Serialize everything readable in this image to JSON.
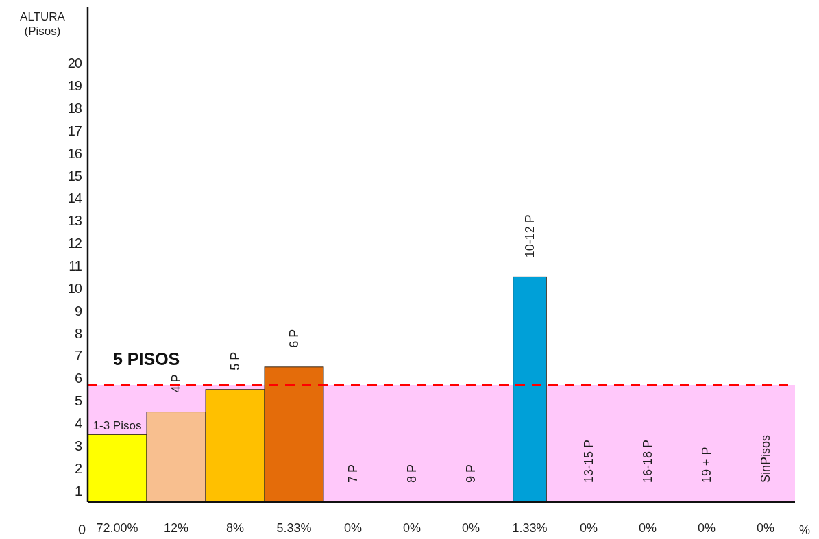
{
  "chart_data": {
    "type": "bar",
    "ylabel": "ALTURA (Pisos)",
    "xlabel": "%",
    "categories": [
      "72.00%",
      "12%",
      "8%",
      "5.33%",
      "0%",
      "0%",
      "0%",
      "1.33%",
      "0%",
      "0%",
      "0%",
      "0%"
    ],
    "values": [
      3,
      4,
      5,
      6,
      null,
      null,
      null,
      10,
      null,
      null,
      null,
      null
    ],
    "value_labels": [
      "1-3 Pisos",
      "4 P",
      "5 P",
      "6 P",
      "7 P",
      "8 P",
      "9 P",
      "10-12 P",
      "13-15 P",
      "16-18 P",
      "19 + P",
      "SinPisos"
    ],
    "colors": [
      "#ffff00",
      "#f8bf8f",
      "#ffc000",
      "#e46c0a",
      null,
      null,
      null,
      "#00a0d8",
      null,
      null,
      null,
      null
    ],
    "ylim": [
      0,
      22
    ],
    "yticks": [
      {
        "value": 0.5,
        "label": "1"
      },
      {
        "value": 1.5,
        "label": "2"
      },
      {
        "value": 2.5,
        "label": "3"
      },
      {
        "value": 3.5,
        "label": "4"
      },
      {
        "value": 4.5,
        "label": "5"
      },
      {
        "value": 5.5,
        "label": "6"
      },
      {
        "value": 6.5,
        "label": "7"
      },
      {
        "value": 7.5,
        "label": "8"
      },
      {
        "value": 8.5,
        "label": "9"
      },
      {
        "value": 9.5,
        "label": "10"
      },
      {
        "value": 10.5,
        "label": "11"
      },
      {
        "value": 11.5,
        "label": "12"
      },
      {
        "value": 12.5,
        "label": "13"
      },
      {
        "value": 13.5,
        "label": "14"
      },
      {
        "value": 14.5,
        "label": "15"
      },
      {
        "value": 15.5,
        "label": "16"
      },
      {
        "value": 16.5,
        "label": "17"
      },
      {
        "value": 17.5,
        "label": "18"
      },
      {
        "value": 18.5,
        "label": "19"
      },
      {
        "value": 19.5,
        "label": "20"
      }
    ],
    "ref_lines": [
      {
        "axis": "y",
        "value": 5.2,
        "label": "5 PISOS",
        "color": "#ff0000",
        "line_style": "dashed"
      }
    ],
    "bands": [
      {
        "axis": "y",
        "from": 0,
        "to": 5.2,
        "color": "#ffc8fa"
      }
    ],
    "annotations": [
      "0"
    ]
  }
}
